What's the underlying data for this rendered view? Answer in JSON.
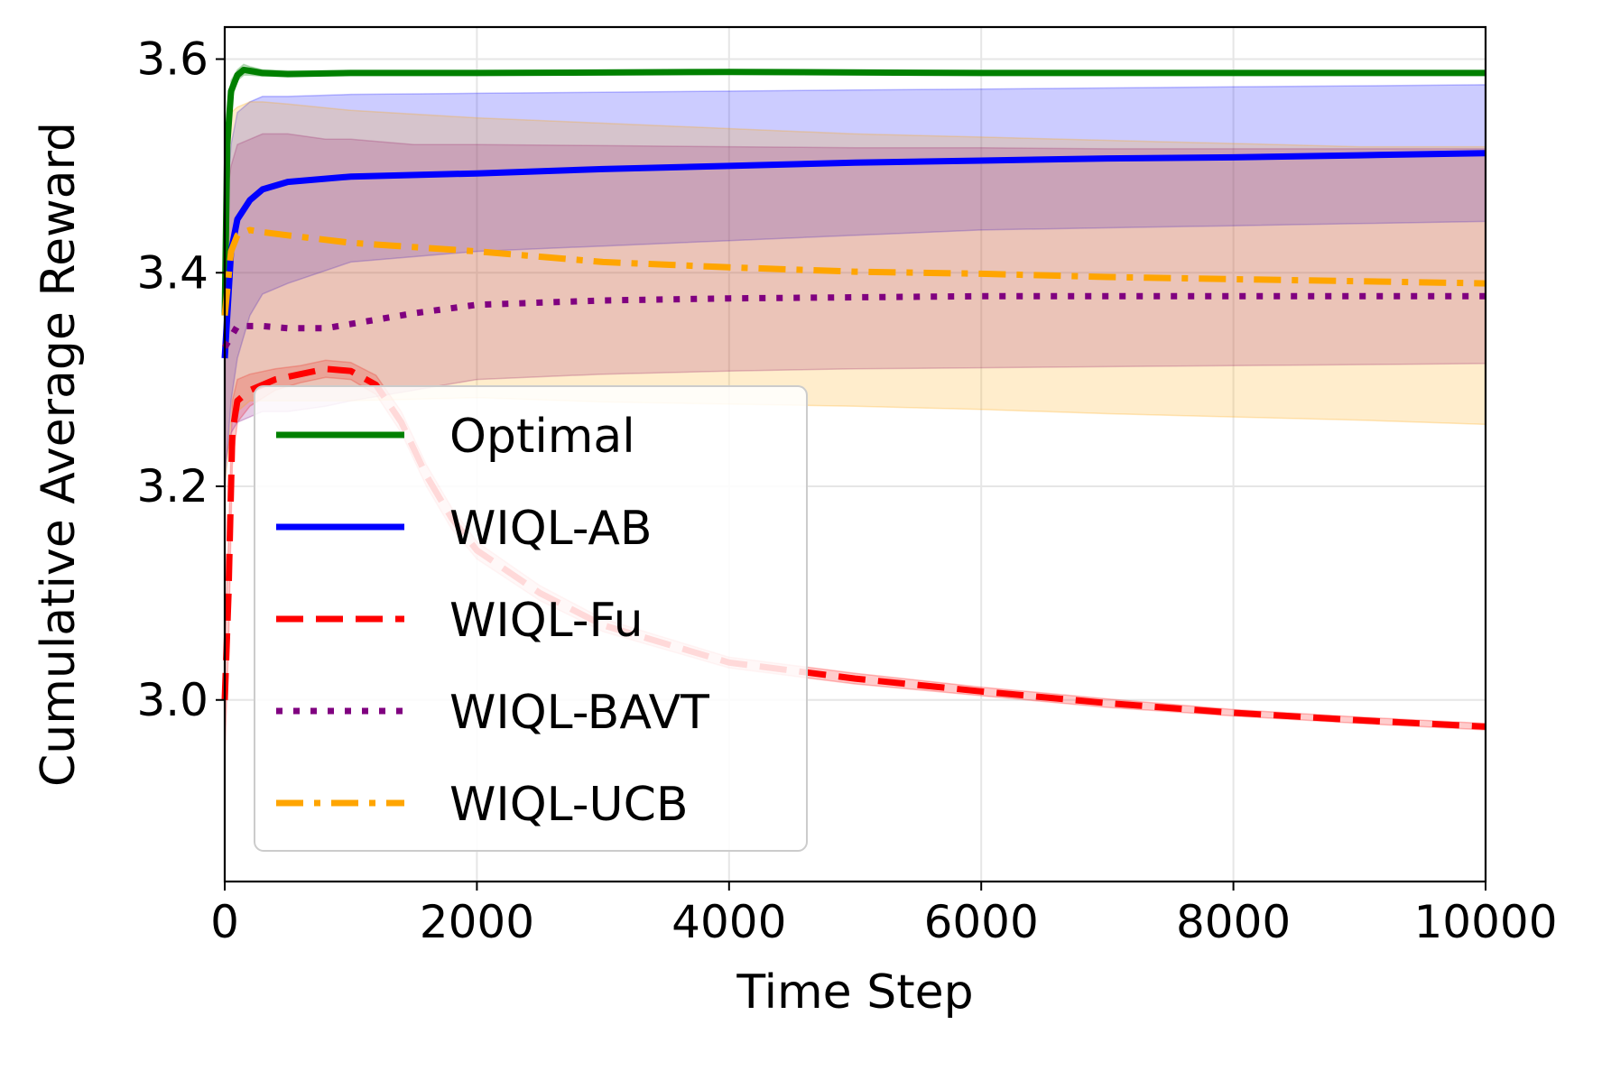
{
  "chart_data": {
    "type": "line",
    "title": "",
    "xlabel": "Time Step",
    "ylabel": "Cumulative Average Reward",
    "xlim": [
      0,
      10000
    ],
    "ylim": [
      2.83,
      3.63
    ],
    "xticks": [
      0,
      2000,
      4000,
      6000,
      8000,
      10000
    ],
    "xtick_labels": [
      "0",
      "2000",
      "4000",
      "6000",
      "8000",
      "10000"
    ],
    "yticks": [
      3.0,
      3.2,
      3.4,
      3.6
    ],
    "ytick_labels": [
      "3.0",
      "3.2",
      "3.4",
      "3.6"
    ],
    "grid": true,
    "legend": {
      "placement": "lower-left"
    },
    "series": [
      {
        "name": "Optimal",
        "color": "#008000",
        "style": "solid",
        "x": [
          0,
          20,
          50,
          100,
          150,
          200,
          300,
          500,
          1000,
          2000,
          4000,
          6000,
          8000,
          10000
        ],
        "y": [
          3.36,
          3.52,
          3.57,
          3.585,
          3.59,
          3.589,
          3.587,
          3.586,
          3.587,
          3.587,
          3.588,
          3.587,
          3.587,
          3.587
        ],
        "band_low": [
          3.3,
          3.5,
          3.56,
          3.58,
          3.585,
          3.585,
          3.584,
          3.584,
          3.585,
          3.586,
          3.587,
          3.586,
          3.586,
          3.586
        ],
        "band_high": [
          3.42,
          3.54,
          3.58,
          3.59,
          3.595,
          3.593,
          3.59,
          3.589,
          3.589,
          3.589,
          3.589,
          3.588,
          3.588,
          3.588
        ]
      },
      {
        "name": "WIQL-AB",
        "color": "#0000ff",
        "style": "solid",
        "x": [
          0,
          50,
          100,
          200,
          300,
          500,
          1000,
          2000,
          3000,
          4000,
          5000,
          6000,
          7000,
          8000,
          9000,
          10000
        ],
        "y": [
          3.32,
          3.42,
          3.45,
          3.468,
          3.478,
          3.485,
          3.49,
          3.493,
          3.497,
          3.5,
          3.503,
          3.505,
          3.507,
          3.508,
          3.51,
          3.512
        ],
        "band_low": [
          3.2,
          3.28,
          3.32,
          3.36,
          3.38,
          3.39,
          3.41,
          3.42,
          3.425,
          3.43,
          3.435,
          3.44,
          3.442,
          3.444,
          3.446,
          3.448
        ],
        "band_high": [
          3.44,
          3.52,
          3.55,
          3.56,
          3.565,
          3.565,
          3.567,
          3.568,
          3.569,
          3.57,
          3.571,
          3.572,
          3.573,
          3.574,
          3.575,
          3.576
        ]
      },
      {
        "name": "WIQL-Fu",
        "color": "#ff0000",
        "style": "dashed",
        "x": [
          0,
          30,
          60,
          100,
          200,
          400,
          600,
          800,
          1000,
          1200,
          1400,
          1600,
          1800,
          2000,
          2500,
          3000,
          4000,
          5000,
          6000,
          7000,
          8000,
          9000,
          10000
        ],
        "y": [
          3.0,
          3.1,
          3.25,
          3.28,
          3.29,
          3.3,
          3.305,
          3.31,
          3.308,
          3.295,
          3.26,
          3.21,
          3.17,
          3.14,
          3.1,
          3.07,
          3.035,
          3.02,
          3.008,
          2.997,
          2.988,
          2.981,
          2.975
        ],
        "band_low": [
          2.95,
          3.05,
          3.22,
          3.26,
          3.275,
          3.29,
          3.297,
          3.302,
          3.3,
          3.286,
          3.25,
          3.2,
          3.16,
          3.132,
          3.093,
          3.064,
          3.03,
          3.015,
          3.004,
          2.993,
          2.985,
          2.978,
          2.972
        ],
        "band_high": [
          3.05,
          3.15,
          3.28,
          3.3,
          3.305,
          3.31,
          3.313,
          3.318,
          3.316,
          3.304,
          3.27,
          3.22,
          3.18,
          3.148,
          3.107,
          3.076,
          3.04,
          3.025,
          3.012,
          3.001,
          2.991,
          2.984,
          2.978
        ]
      },
      {
        "name": "WIQL-BAVT",
        "color": "#800080",
        "style": "dotted",
        "x": [
          0,
          50,
          100,
          300,
          500,
          800,
          1000,
          1500,
          2000,
          3000,
          4000,
          5000,
          6000,
          7000,
          8000,
          9000,
          10000
        ],
        "y": [
          3.33,
          3.34,
          3.35,
          3.35,
          3.348,
          3.348,
          3.352,
          3.362,
          3.37,
          3.374,
          3.376,
          3.377,
          3.378,
          3.378,
          3.378,
          3.378,
          3.378
        ],
        "band_low": [
          3.22,
          3.25,
          3.26,
          3.27,
          3.27,
          3.275,
          3.28,
          3.29,
          3.3,
          3.305,
          3.308,
          3.31,
          3.311,
          3.312,
          3.313,
          3.314,
          3.315
        ],
        "band_high": [
          3.46,
          3.5,
          3.52,
          3.53,
          3.53,
          3.525,
          3.525,
          3.52,
          3.52,
          3.519,
          3.518,
          3.517,
          3.517,
          3.516,
          3.516,
          3.516,
          3.516
        ]
      },
      {
        "name": "WIQL-UCB",
        "color": "#ffa500",
        "style": "dashdot",
        "x": [
          0,
          50,
          100,
          200,
          300,
          500,
          1000,
          2000,
          3000,
          4000,
          5000,
          6000,
          7000,
          8000,
          9000,
          10000
        ],
        "y": [
          3.36,
          3.42,
          3.435,
          3.44,
          3.438,
          3.435,
          3.428,
          3.42,
          3.41,
          3.405,
          3.401,
          3.399,
          3.396,
          3.394,
          3.392,
          3.39
        ],
        "band_low": [
          3.2,
          3.26,
          3.27,
          3.28,
          3.28,
          3.28,
          3.28,
          3.283,
          3.279,
          3.277,
          3.275,
          3.272,
          3.268,
          3.265,
          3.262,
          3.258
        ],
        "band_high": [
          3.52,
          3.55,
          3.555,
          3.56,
          3.56,
          3.558,
          3.552,
          3.545,
          3.54,
          3.535,
          3.53,
          3.527,
          3.524,
          3.521,
          3.518,
          3.518
        ]
      }
    ]
  }
}
